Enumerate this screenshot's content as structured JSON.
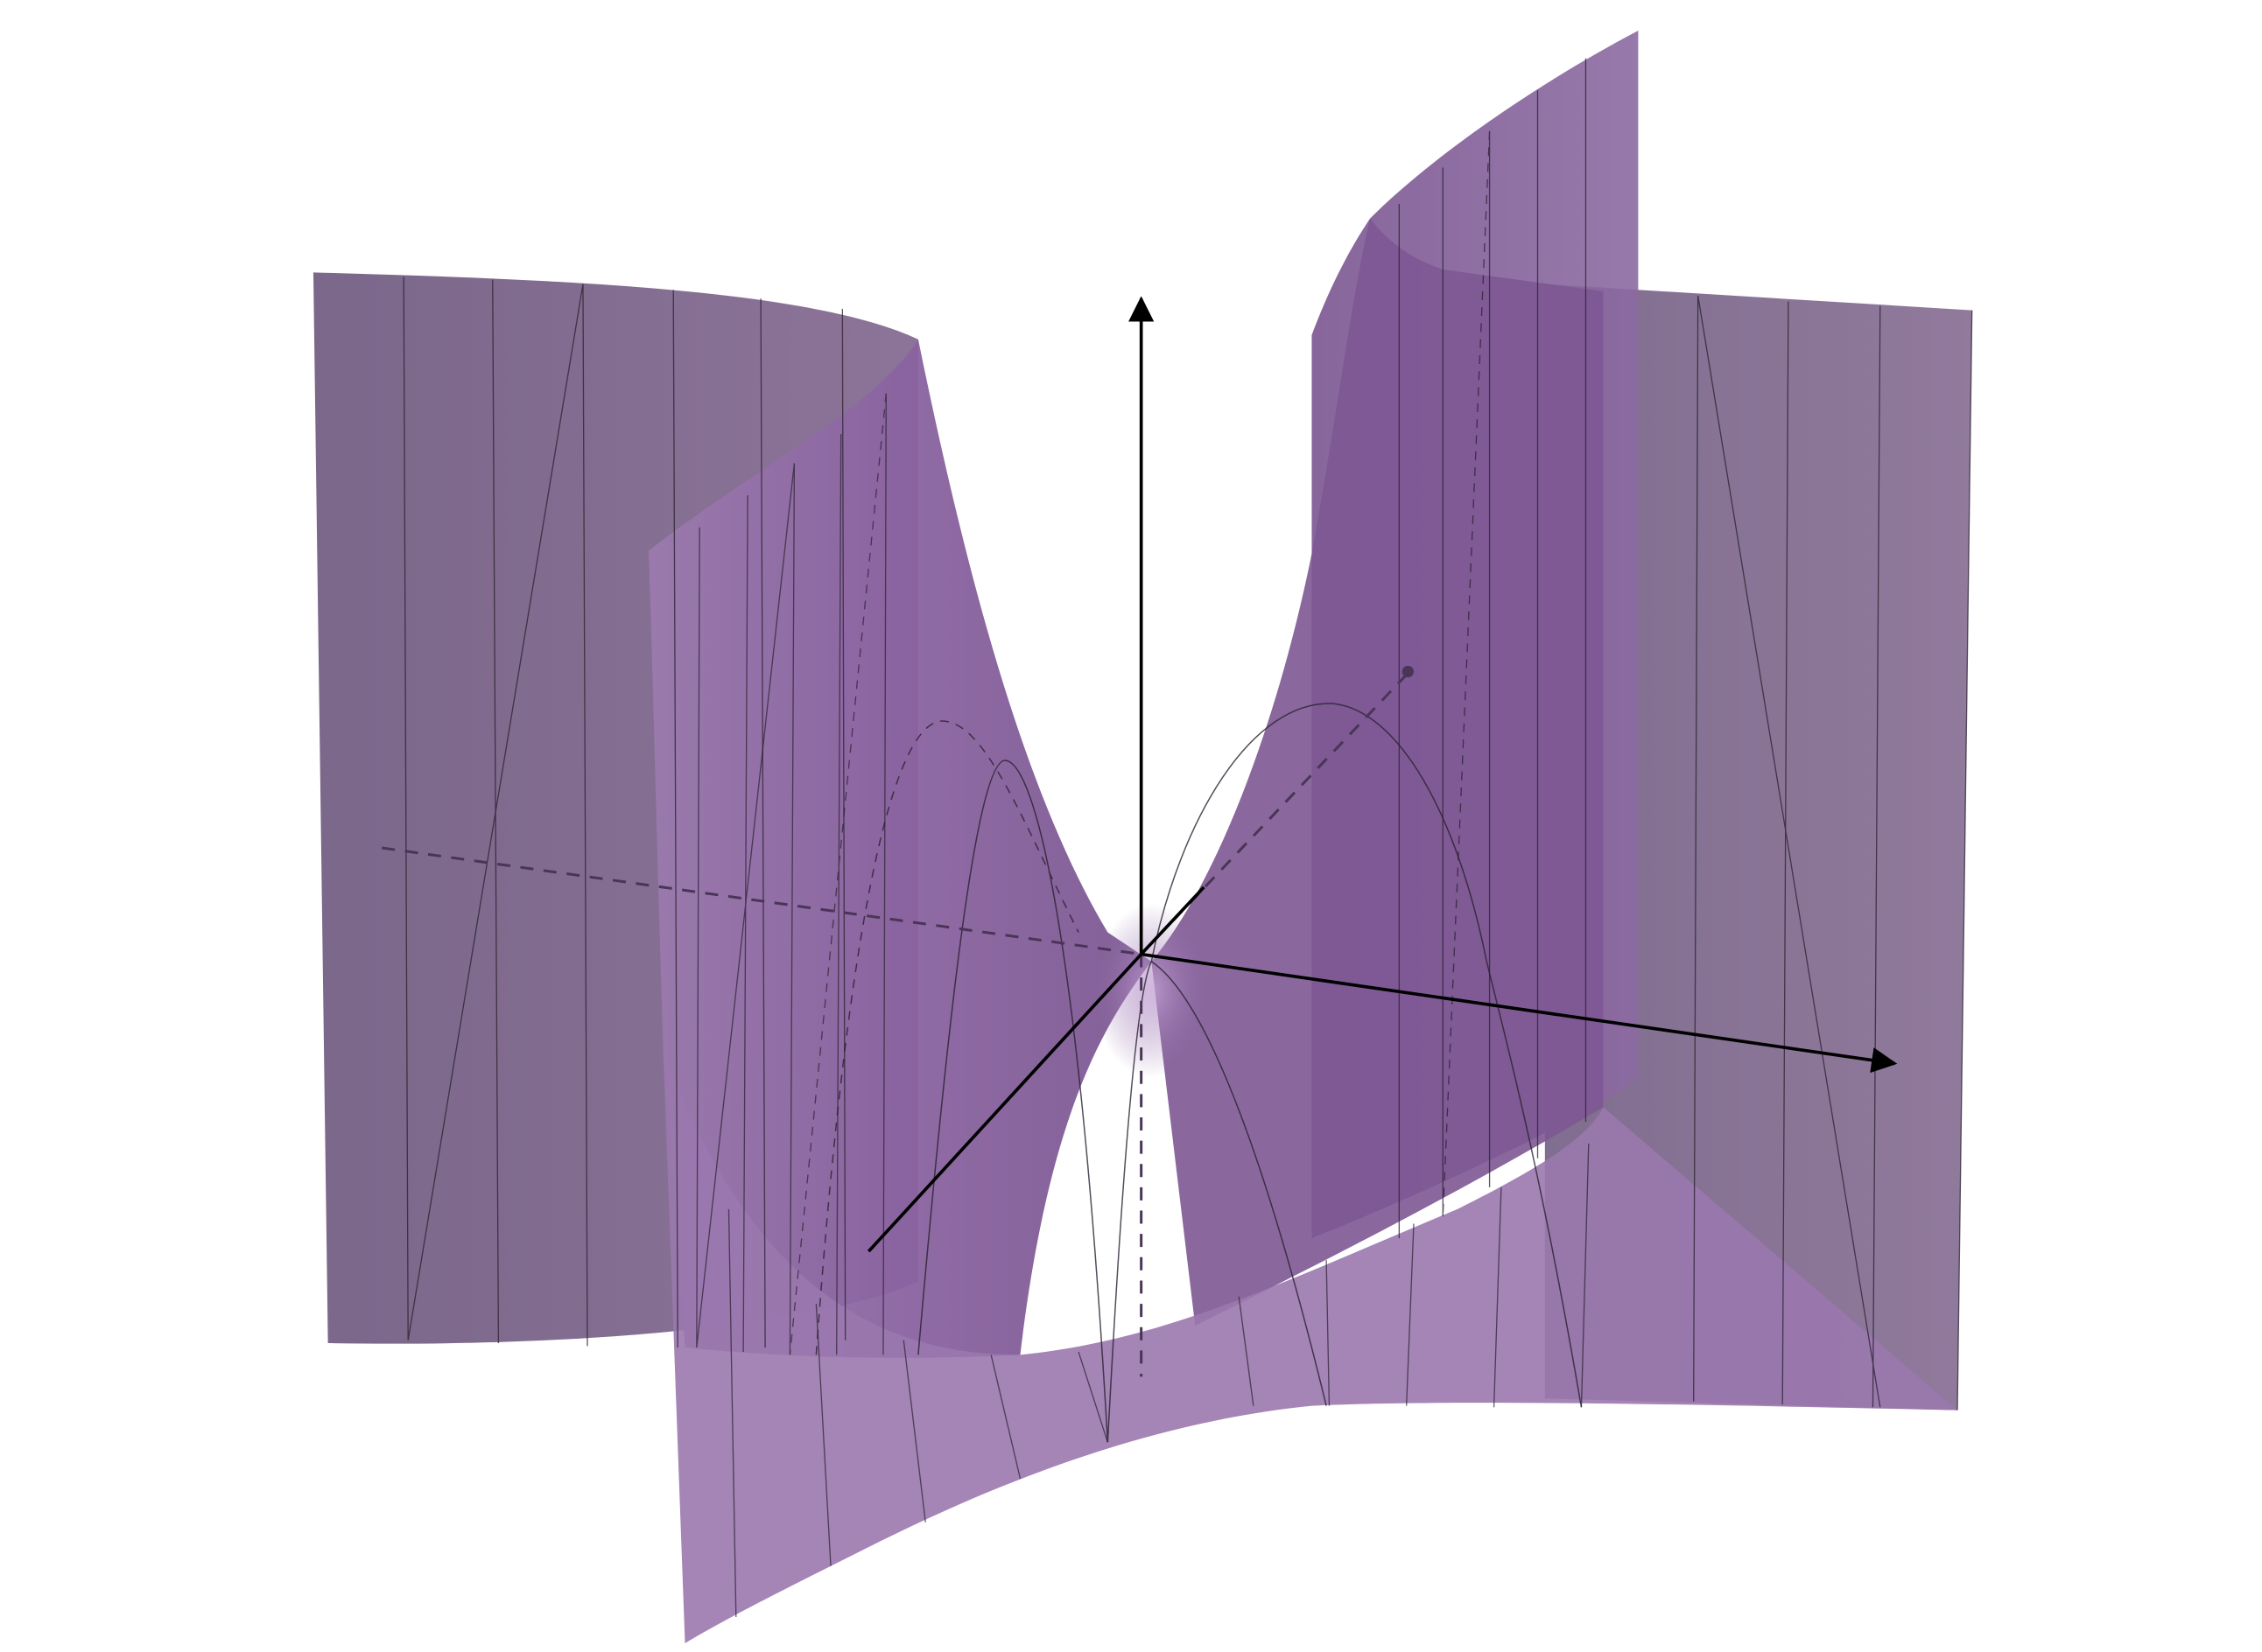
{
  "figure": {
    "type": "3d-surface-plot",
    "surface_color": "#8a5fa0",
    "back_sheet_color": "#6e5a80",
    "axis_color": "#000000",
    "mesh_line_color": "#2a2030",
    "hidden_line_style": "dashed",
    "axes": [
      {
        "name": "z-axis",
        "direction": "up",
        "arrow": true
      },
      {
        "name": "x-axis",
        "direction": "right",
        "arrow": true
      },
      {
        "name": "y-axis",
        "direction": "back-right",
        "arrow": true
      }
    ],
    "labels": []
  }
}
